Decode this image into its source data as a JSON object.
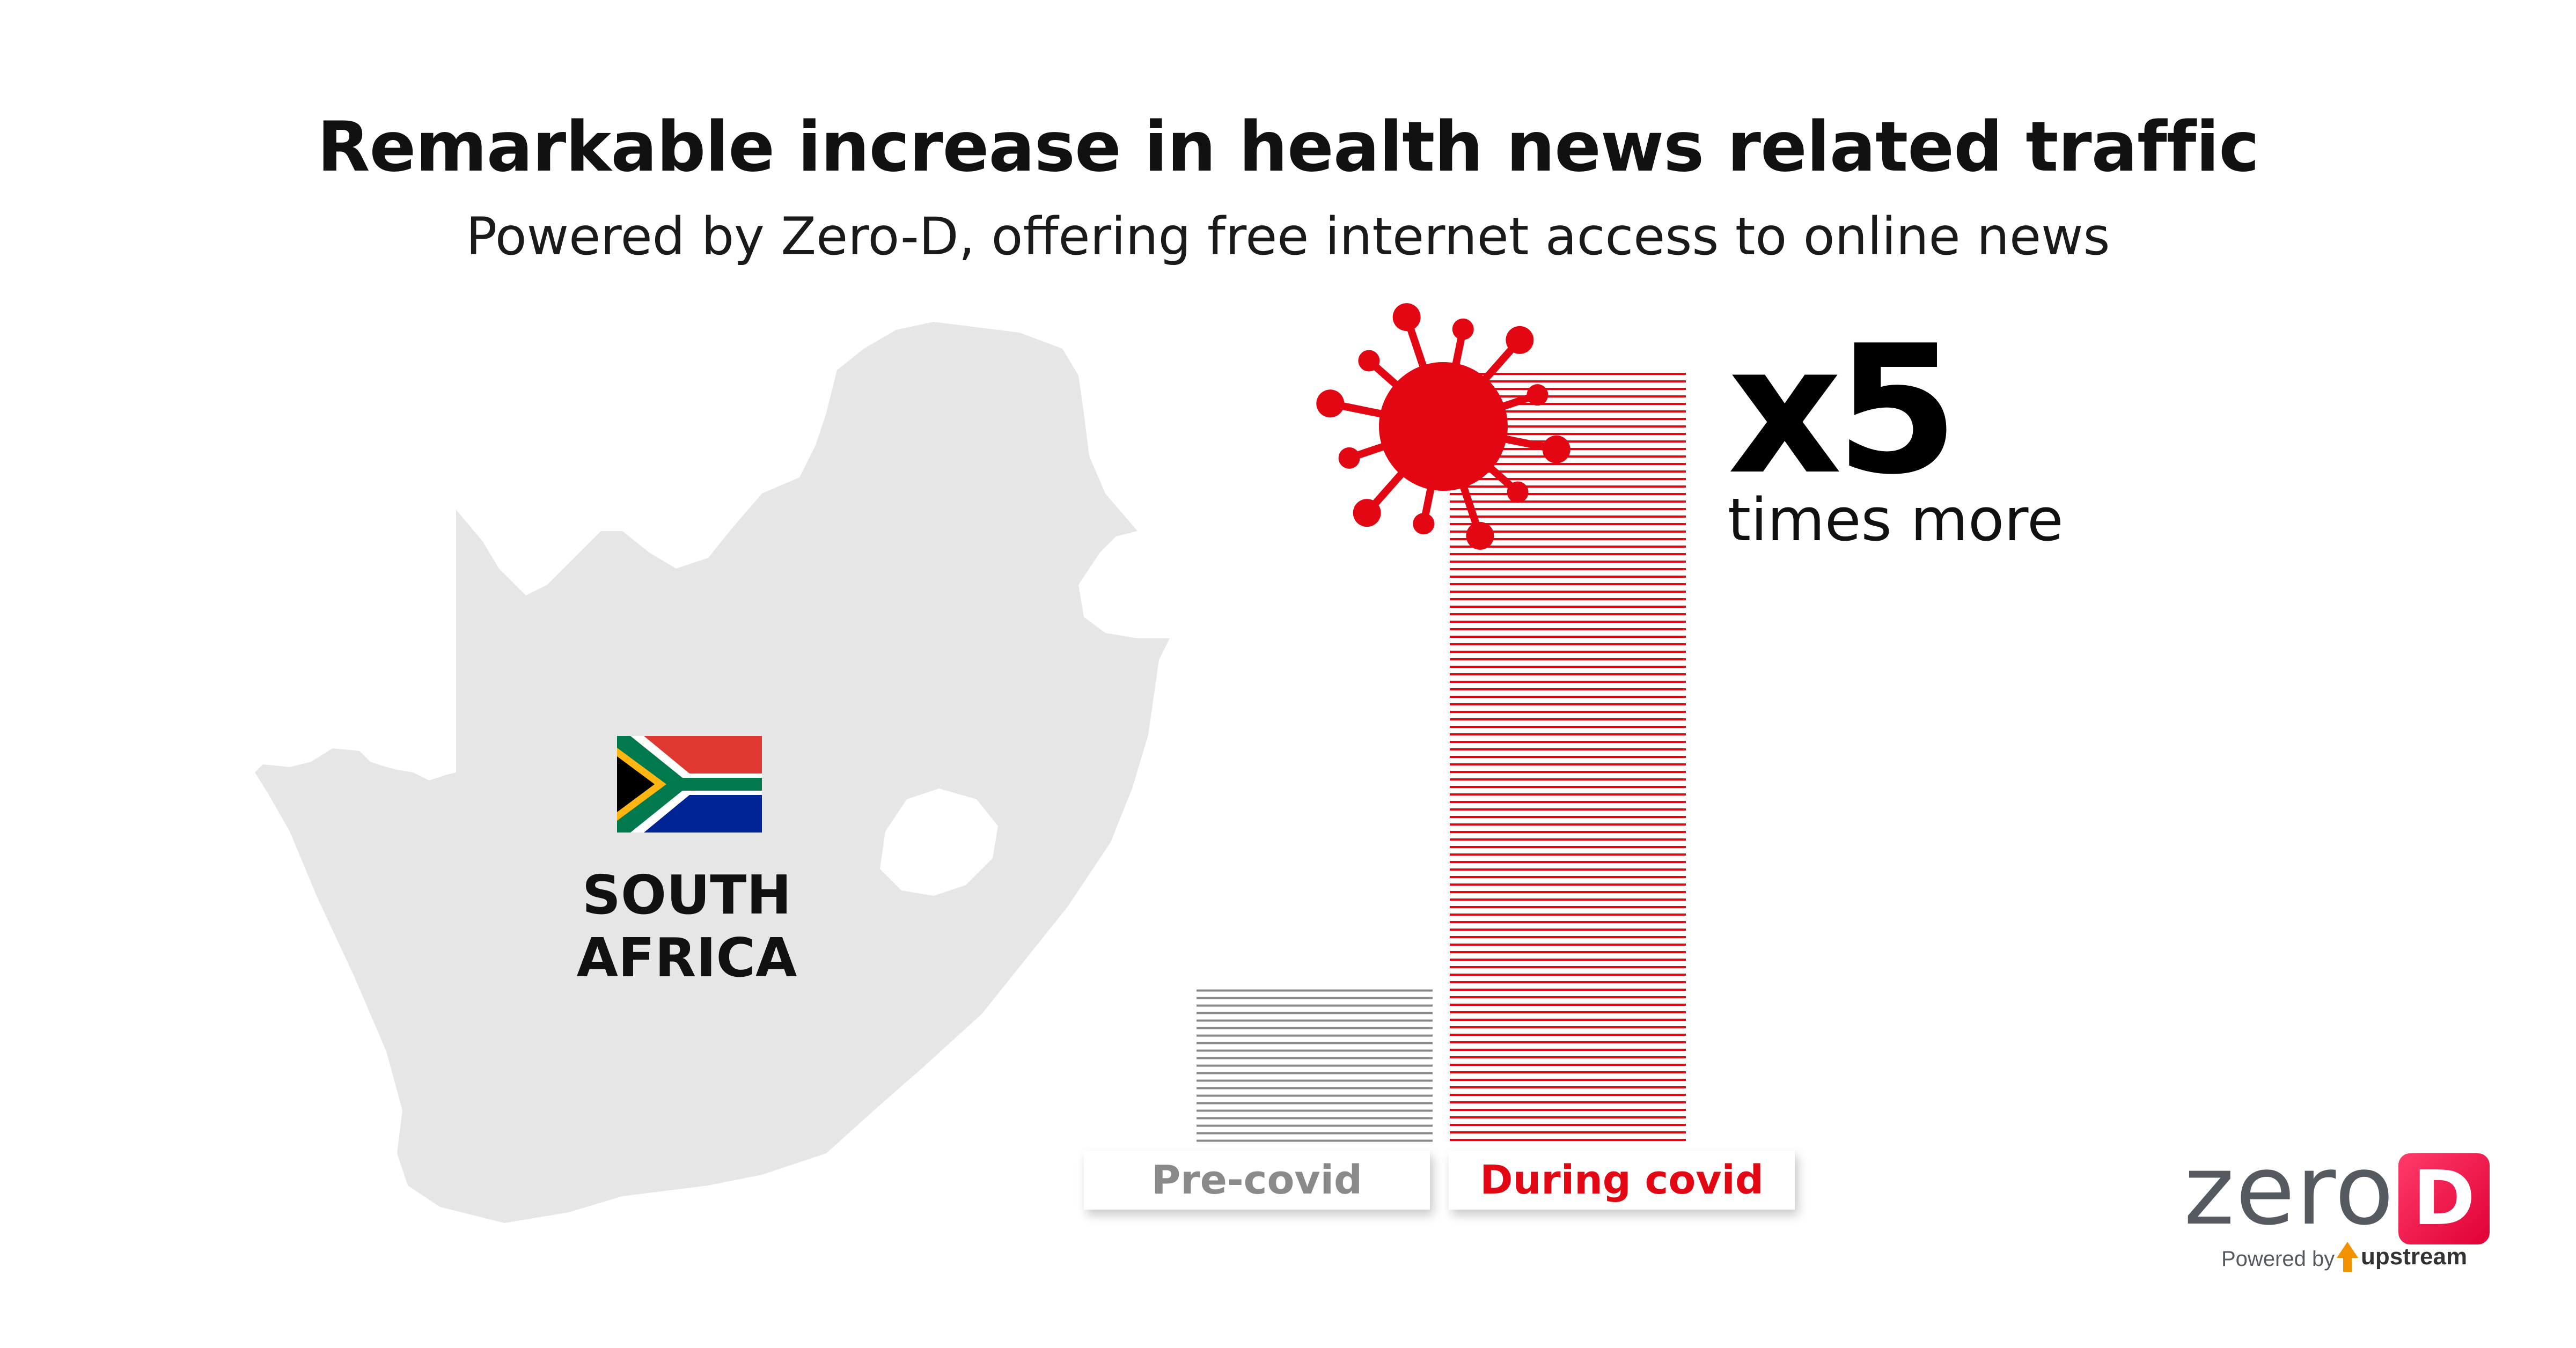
{
  "header": {
    "title": "Remarkable increase in health news related traffic",
    "subtitle": "Powered by Zero-D, offering free internet access to online news"
  },
  "country": {
    "name": "SOUTH AFRICA",
    "flag_icon": "south-africa-flag-icon",
    "map_icon": "south-africa-map-icon"
  },
  "chart_data": {
    "type": "bar",
    "categories": [
      "Pre-covid",
      "During covid"
    ],
    "values": [
      1,
      5
    ],
    "ylim": [
      0,
      5
    ],
    "grid": false,
    "category_colors": [
      "#8a8a8a",
      "#e30613"
    ],
    "annotation": {
      "value": "x5",
      "text": "times more"
    }
  },
  "decor": {
    "virus_icon": "coronavirus-icon",
    "virus_color": "#e30613"
  },
  "logo": {
    "word": "zero",
    "badge": "D",
    "powered_by": "Powered by",
    "brand": "upstream",
    "accent": "#e6163d"
  }
}
